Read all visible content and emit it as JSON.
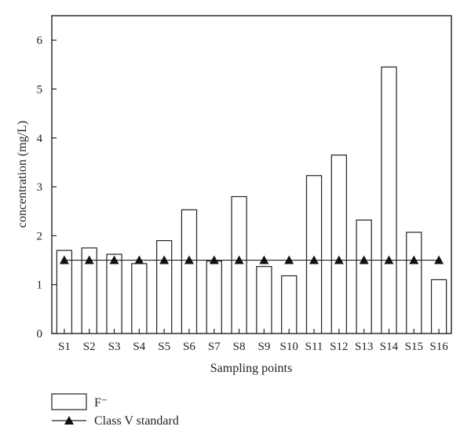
{
  "chart_data": {
    "type": "bar",
    "categories": [
      "S1",
      "S2",
      "S3",
      "S4",
      "S5",
      "S6",
      "S7",
      "S8",
      "S9",
      "S10",
      "S11",
      "S12",
      "S13",
      "S14",
      "S15",
      "S16"
    ],
    "series": [
      {
        "name": "F⁻",
        "type": "bar",
        "values": [
          1.7,
          1.75,
          1.62,
          1.43,
          1.9,
          2.53,
          1.48,
          2.8,
          1.37,
          1.18,
          3.23,
          3.65,
          2.32,
          5.45,
          2.07,
          1.1
        ]
      },
      {
        "name": "Class V standard",
        "type": "line",
        "marker": "triangle",
        "values": [
          1.5,
          1.5,
          1.5,
          1.5,
          1.5,
          1.5,
          1.5,
          1.5,
          1.5,
          1.5,
          1.5,
          1.5,
          1.5,
          1.5,
          1.5,
          1.5
        ]
      }
    ],
    "xlabel": "Sampling points",
    "ylabel": "concentration (mg/L)",
    "ylim": [
      0,
      6.5
    ],
    "yticks": [
      "0",
      "1",
      "2",
      "3",
      "4",
      "5",
      "6"
    ],
    "grid": false,
    "legend_position": "bottom-left",
    "colors": {
      "bar_fill": "#ffffff",
      "stroke": "#222222",
      "marker": "#111111"
    }
  }
}
